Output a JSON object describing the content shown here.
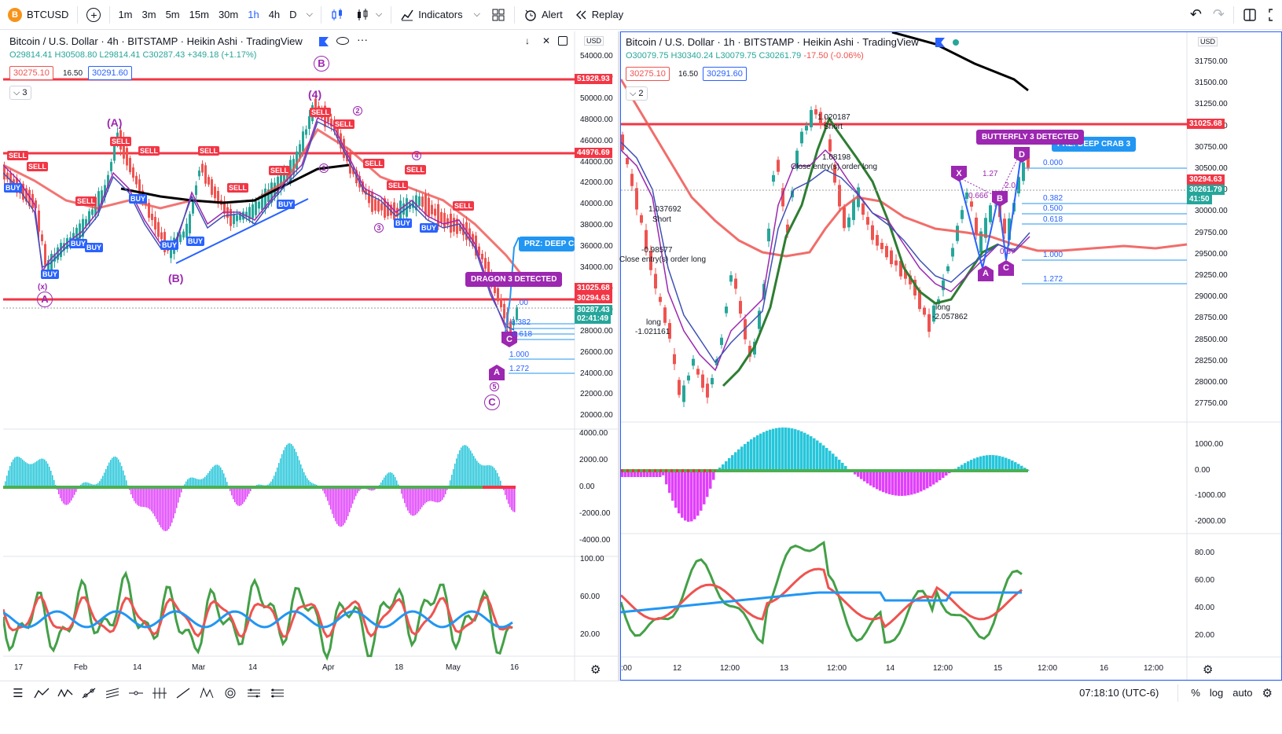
{
  "toolbar": {
    "symbol": "BTCUSD",
    "symbol_glyph": "B",
    "add": "+",
    "timeframes": [
      "1m",
      "3m",
      "5m",
      "15m",
      "30m",
      "1h",
      "4h",
      "D"
    ],
    "active_timeframe": "1h",
    "dropdown": "⌵",
    "indicators": "Indicators",
    "alert": "Alert",
    "replay": "Replay",
    "undo": "↶",
    "redo": "↷"
  },
  "left": {
    "title": "Bitcoin / U.S. Dollar · 4h · BITSTAMP · Heikin Ashi · TradingView",
    "ohlc": {
      "o": "O29814.41",
      "h": "H30508.80",
      "l": "L29814.41",
      "c": "C30287.43",
      "chg": "+349.18 (+1.17%)"
    },
    "bid": "30275.10",
    "spread": "16.50",
    "ask": "30291.60",
    "collapse": "3",
    "currency": "USD",
    "price_axis": [
      "54000.00",
      "52000.00",
      "50000.00",
      "48000.00",
      "46000.00",
      "44000.00",
      "42000.00",
      "40000.00",
      "38000.00",
      "36000.00",
      "34000.00",
      "32000.00",
      "30000.00",
      "28000.00",
      "26000.00",
      "24000.00",
      "22000.00",
      "20000.00"
    ],
    "axis_tags": [
      {
        "text": "51928.93",
        "color": "#f23645"
      },
      {
        "text": "44976.69",
        "color": "#f23645"
      },
      {
        "text": "31025.68",
        "color": "#f23645"
      },
      {
        "text": "30294.63",
        "color": "#f23645"
      },
      {
        "text": "30287.43",
        "color": "#26a69a"
      },
      {
        "text": "02:41:49",
        "color": "#26a69a"
      }
    ],
    "osc_axis": [
      "4000.00",
      "2000.00",
      "0.00",
      "-2000.00",
      "-4000.00"
    ],
    "rsi_axis": [
      "100.00",
      "60.00",
      "20.00"
    ],
    "time_axis": [
      "17",
      "Feb",
      "14",
      "Mar",
      "14",
      "Apr",
      "18",
      "May",
      "16"
    ],
    "tags": [
      {
        "text": "PRZ: DEEP CR",
        "color": "#2196f3"
      },
      {
        "text": "DRAGON 3 DETECTED",
        "color": "#9c27b0"
      }
    ],
    "fibs": [
      "0.382",
      "0.618",
      "1.000",
      "1.272",
      ".00"
    ],
    "waves": [
      "B",
      "(4)",
      "(A)",
      "(B)",
      "A",
      "C",
      "5",
      "1",
      "2",
      "3",
      "4",
      "(x)"
    ],
    "buy": "BUY",
    "sell": "SELL",
    "point_a": "A",
    "point_c": "C"
  },
  "right": {
    "title": "Bitcoin / U.S. Dollar · 1h · BITSTAMP · Heikin Ashi · TradingView",
    "ohlc": {
      "o": "O30079.75",
      "h": "H30340.24",
      "l": "L30079.75",
      "c": "C30261.79",
      "chg": "-17.50 (-0.06%)"
    },
    "bid": "30275.10",
    "spread": "16.50",
    "ask": "30291.60",
    "collapse": "2",
    "currency": "USD",
    "price_axis": [
      "31750.00",
      "31500.00",
      "31250.00",
      "31000.00",
      "30750.00",
      "30500.00",
      "30250.00",
      "30000.00",
      "29750.00",
      "29500.00",
      "29250.00",
      "29000.00",
      "28750.00",
      "28500.00",
      "28250.00",
      "28000.00",
      "27750.00"
    ],
    "axis_tags": [
      {
        "text": "31025.68",
        "color": "#f23645"
      },
      {
        "text": "30294.63",
        "color": "#f23645"
      },
      {
        "text": "30261.79",
        "color": "#26a69a"
      },
      {
        "text": "41:50",
        "color": "#26a69a"
      }
    ],
    "osc_axis": [
      "1000.00",
      "0.00",
      "-1000.00",
      "-2000.00"
    ],
    "rsi_axis": [
      "80.00",
      "60.00",
      "40.00",
      "20.00"
    ],
    "time_axis": [
      ":00",
      "12",
      "12:00",
      "13",
      "12:00",
      "14",
      "12:00",
      "15",
      "12:00",
      "16",
      "12:00"
    ],
    "tags": [
      {
        "text": "BUTTERFLY 3 DETECTED",
        "color": "#9c27b0"
      },
      {
        "text": "PRZ: DEEP CRAB 3",
        "color": "#2196f3"
      }
    ],
    "fibs": [
      "0.000",
      "0.382",
      "0.500",
      "0.618",
      "1.000",
      "1.272"
    ],
    "notes": [
      "1.020187",
      "Short",
      "1.08198",
      "Close entry(s) order long",
      "1.037692",
      "Short",
      "-0.98577",
      "Close entry(s) order long",
      "long",
      "-1.021161",
      "long",
      "-2.057862",
      "1.27",
      "2.0",
      "0.666",
      "0.87"
    ],
    "points": [
      "X",
      "A",
      "B",
      "C",
      "D"
    ]
  },
  "status": {
    "clock": "07:18:10 (UTC-6)",
    "percent": "%",
    "log": "log",
    "auto": "auto"
  }
}
